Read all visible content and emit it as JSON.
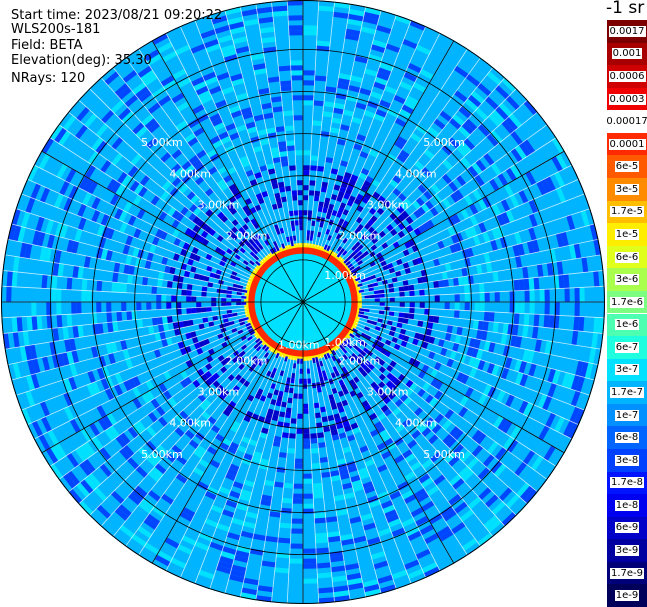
{
  "info": {
    "start_time": "Start time: 2023/08/21 09:20:22",
    "instrument": "WLS200s-181",
    "field": "Field: BETA",
    "elevation": "Elevation(deg): 35.30",
    "nrays": "NRays: 120"
  },
  "colorbar": {
    "title": "-1 sr",
    "levels": [
      {
        "label": "0.0017",
        "color": "#7d0000"
      },
      {
        "label": "0.001",
        "color": "#a80000"
      },
      {
        "label": "0.0006",
        "color": "#cf0000"
      },
      {
        "label": "0.0003",
        "color": "#f00000"
      },
      {
        "label": "0.00017",
        "color": "#ffffff"
      },
      {
        "label": "0.0001",
        "color": "#ff2a00"
      },
      {
        "label": "6e-5",
        "color": "#ff5a00"
      },
      {
        "label": "3e-5",
        "color": "#ff8c00"
      },
      {
        "label": "1.7e-5",
        "color": "#ffbf00"
      },
      {
        "label": "1e-5",
        "color": "#ffee00"
      },
      {
        "label": "6e-6",
        "color": "#e0ff1a"
      },
      {
        "label": "3e-6",
        "color": "#aaff4d"
      },
      {
        "label": "1.7e-6",
        "color": "#7cff80"
      },
      {
        "label": "1e-6",
        "color": "#4dffb0"
      },
      {
        "label": "6e-7",
        "color": "#1fffe0"
      },
      {
        "label": "3e-7",
        "color": "#00e0ff"
      },
      {
        "label": "1.7e-7",
        "color": "#00b4ff"
      },
      {
        "label": "1e-7",
        "color": "#0090ff"
      },
      {
        "label": "6e-8",
        "color": "#0064ff"
      },
      {
        "label": "3e-8",
        "color": "#0040ff"
      },
      {
        "label": "1.7e-8",
        "color": "#0014ff"
      },
      {
        "label": "1e-8",
        "color": "#0000f0"
      },
      {
        "label": "6e-9",
        "color": "#0000c8"
      },
      {
        "label": "3e-9",
        "color": "#0000a0"
      },
      {
        "label": "1.7e-9",
        "color": "#000078"
      },
      {
        "label": "1e-9",
        "color": "#00005a"
      }
    ]
  },
  "chart_data": {
    "type": "heatmap",
    "projection": "polar PPI",
    "field": "BETA",
    "units": "-1 sr",
    "elevation_deg": 35.3,
    "nrays": 120,
    "range_rings_km": [
      1,
      2,
      3,
      4,
      5,
      6
    ],
    "range_labels": [
      "2.00km",
      "3.00km",
      "4.00km",
      "5.00km"
    ],
    "inner_labels": [
      "1.00km"
    ],
    "azimuth_spokes_deg": [
      0,
      30,
      60,
      90,
      120,
      150,
      180,
      210,
      240,
      270,
      300,
      330
    ],
    "color_scale": "log",
    "value_range": [
      1e-09,
      0.0017
    ],
    "typical_values": {
      "near_range_ring_peak": 0.0001,
      "near_range_core": 3e-07,
      "background": 1e-07
    }
  }
}
